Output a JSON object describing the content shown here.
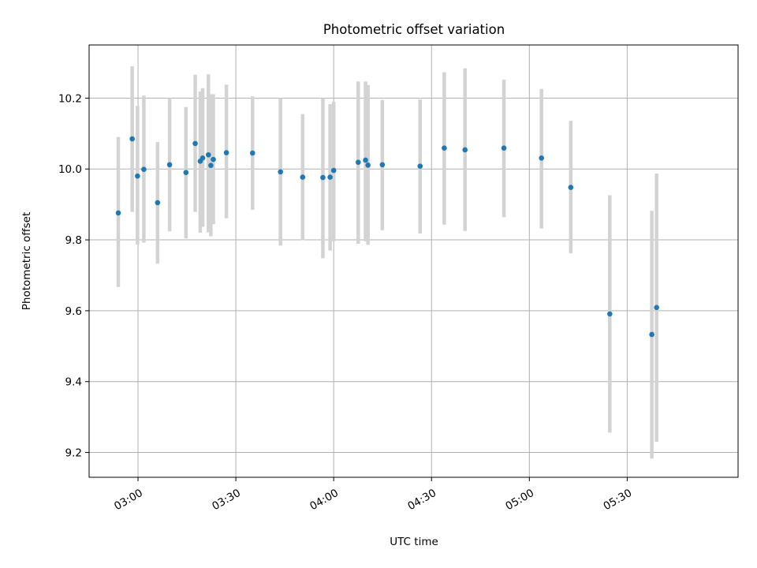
{
  "chart_data": {
    "type": "scatter",
    "title": "Photometric offset variation",
    "xlabel": "UTC time",
    "ylabel": "Photometric offset",
    "xlim": [
      "02:45",
      "06:04"
    ],
    "ylim": [
      9.13,
      10.35
    ],
    "x_ticks": [
      "03:00",
      "03:30",
      "04:00",
      "04:30",
      "05:00",
      "05:30"
    ],
    "y_ticks": [
      "9.2",
      "9.4",
      "9.6",
      "9.8",
      "10.0",
      "10.2"
    ],
    "y_tick_values": [
      9.2,
      9.4,
      9.6,
      9.8,
      10.0,
      10.2
    ],
    "grid": true,
    "marker_color": "#1f77b4",
    "errorbar_color": "#d3d3d3",
    "points": [
      {
        "t": "02:53:57",
        "y": 9.876,
        "ylo": 9.667,
        "yhi": 10.09
      },
      {
        "t": "02:58:13",
        "y": 10.085,
        "ylo": 9.879,
        "yhi": 10.29
      },
      {
        "t": "02:59:50",
        "y": 9.98,
        "ylo": 9.787,
        "yhi": 10.178
      },
      {
        "t": "03:01:47",
        "y": 9.999,
        "ylo": 9.792,
        "yhi": 10.207
      },
      {
        "t": "03:06:00",
        "y": 9.905,
        "ylo": 9.733,
        "yhi": 10.076
      },
      {
        "t": "03:09:41",
        "y": 10.012,
        "ylo": 9.824,
        "yhi": 10.2
      },
      {
        "t": "03:14:42",
        "y": 9.99,
        "ylo": 9.804,
        "yhi": 10.175
      },
      {
        "t": "03:17:32",
        "y": 10.072,
        "ylo": 9.879,
        "yhi": 10.266
      },
      {
        "t": "03:19:05",
        "y": 10.022,
        "ylo": 9.82,
        "yhi": 10.219
      },
      {
        "t": "03:19:50",
        "y": 10.031,
        "ylo": 9.837,
        "yhi": 10.228
      },
      {
        "t": "03:21:35",
        "y": 10.04,
        "ylo": 9.821,
        "yhi": 10.267
      },
      {
        "t": "03:22:20",
        "y": 10.01,
        "ylo": 9.81,
        "yhi": 10.211
      },
      {
        "t": "03:23:05",
        "y": 10.027,
        "ylo": 9.844,
        "yhi": 10.211
      },
      {
        "t": "03:27:06",
        "y": 10.046,
        "ylo": 9.861,
        "yhi": 10.238
      },
      {
        "t": "03:35:07",
        "y": 10.045,
        "ylo": 9.885,
        "yhi": 10.205
      },
      {
        "t": "03:43:41",
        "y": 9.992,
        "ylo": 9.784,
        "yhi": 10.2
      },
      {
        "t": "03:50:29",
        "y": 9.977,
        "ylo": 9.799,
        "yhi": 10.155
      },
      {
        "t": "03:56:41",
        "y": 9.976,
        "ylo": 9.748,
        "yhi": 10.2
      },
      {
        "t": "03:58:54",
        "y": 9.977,
        "ylo": 9.77,
        "yhi": 10.183
      },
      {
        "t": "04:00:00",
        "y": 9.996,
        "ylo": 9.796,
        "yhi": 10.19
      },
      {
        "t": "04:07:31",
        "y": 10.019,
        "ylo": 9.789,
        "yhi": 10.247
      },
      {
        "t": "04:09:46",
        "y": 10.025,
        "ylo": 9.796,
        "yhi": 10.247
      },
      {
        "t": "04:10:31",
        "y": 10.011,
        "ylo": 9.786,
        "yhi": 10.237
      },
      {
        "t": "04:14:55",
        "y": 10.012,
        "ylo": 9.827,
        "yhi": 10.195
      },
      {
        "t": "04:26:30",
        "y": 10.008,
        "ylo": 9.818,
        "yhi": 10.196
      },
      {
        "t": "04:33:54",
        "y": 10.059,
        "ylo": 9.843,
        "yhi": 10.273
      },
      {
        "t": "04:40:16",
        "y": 10.054,
        "ylo": 9.825,
        "yhi": 10.284
      },
      {
        "t": "04:52:12",
        "y": 10.059,
        "ylo": 9.864,
        "yhi": 10.252
      },
      {
        "t": "05:03:43",
        "y": 10.031,
        "ylo": 9.832,
        "yhi": 10.226
      },
      {
        "t": "05:12:42",
        "y": 9.948,
        "ylo": 9.762,
        "yhi": 10.136
      },
      {
        "t": "05:24:40",
        "y": 9.591,
        "ylo": 9.256,
        "yhi": 9.926
      },
      {
        "t": "05:37:33",
        "y": 9.533,
        "ylo": 9.183,
        "yhi": 9.882
      },
      {
        "t": "05:39:01",
        "y": 9.609,
        "ylo": 9.23,
        "yhi": 9.987
      }
    ]
  }
}
